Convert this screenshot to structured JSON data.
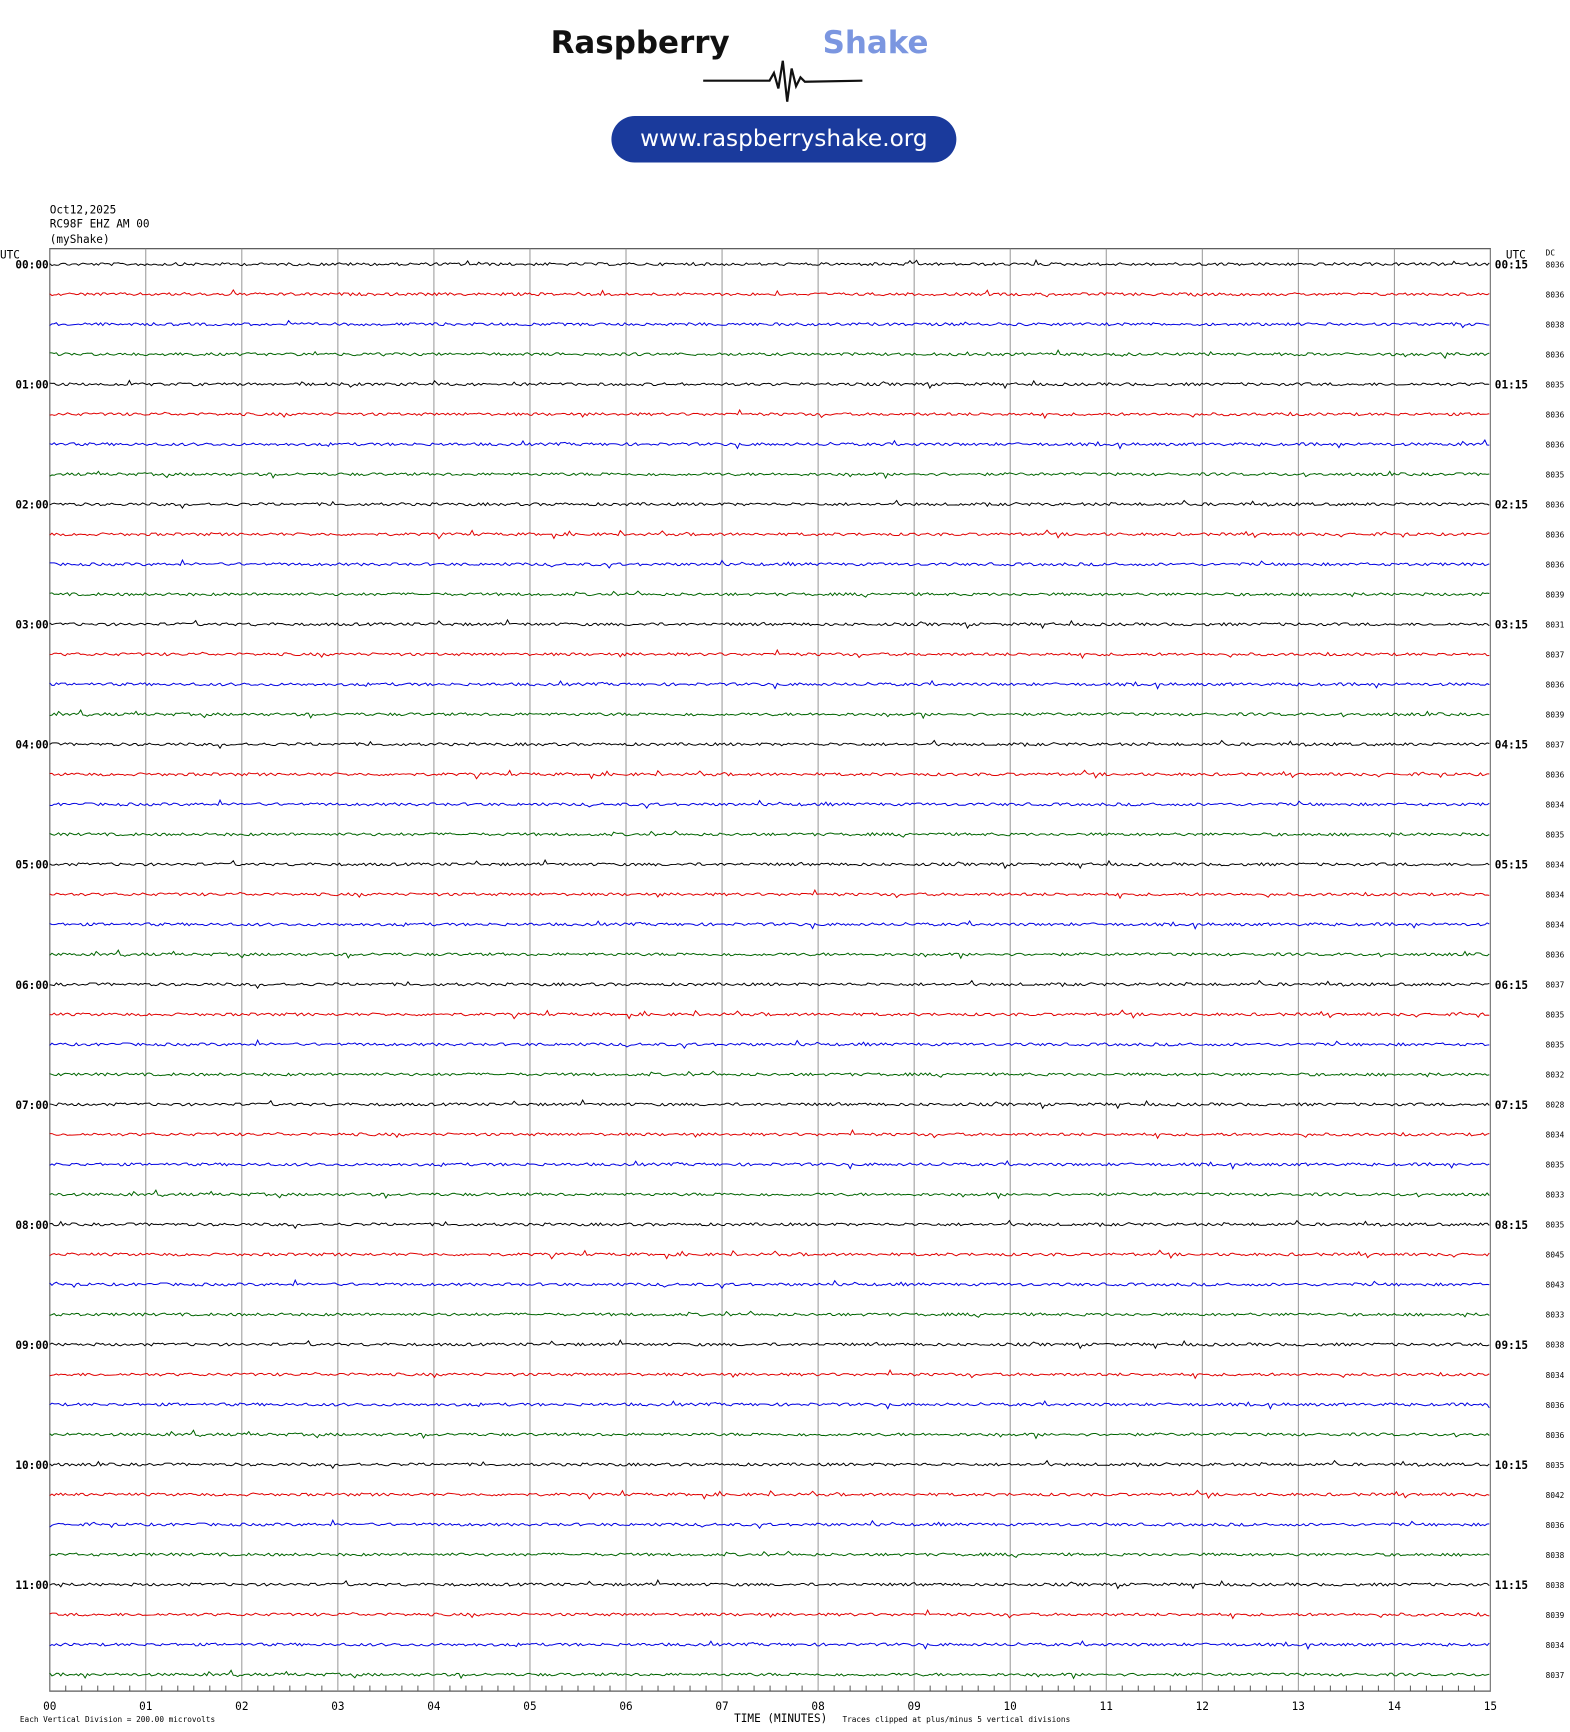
{
  "logo": {
    "name1": "Raspberry",
    "name2": "Shake",
    "url": "www.raspberryshake.org"
  },
  "header": {
    "date": "Oct12,2025",
    "station": "RC98F EHZ AM 00",
    "network": "(myShake)"
  },
  "left_axis": {
    "title": "UTC",
    "labels": [
      "00:00",
      "01:00",
      "02:00",
      "03:00",
      "04:00",
      "05:00",
      "06:00",
      "07:00",
      "08:00",
      "09:00",
      "10:00",
      "11:00"
    ]
  },
  "right_axis": {
    "title": "UTC",
    "labels": [
      "00:15",
      "01:15",
      "02:15",
      "03:15",
      "04:15",
      "05:15",
      "06:15",
      "07:15",
      "08:15",
      "09:15",
      "10:15",
      "11:15"
    ]
  },
  "dc_title": "DC",
  "dc_values": [
    "8036",
    "8036",
    "8038",
    "8036",
    "8035",
    "8036",
    "8036",
    "8035",
    "8036",
    "8036",
    "8036",
    "8039",
    "8031",
    "8037",
    "8036",
    "8039",
    "8037",
    "8036",
    "8034",
    "8035",
    "8034",
    "8034",
    "8034",
    "8036",
    "8037",
    "8035",
    "8035",
    "8032",
    "8028",
    "8034",
    "8035",
    "8033",
    "8035",
    "8045",
    "8043",
    "8033",
    "8038",
    "8034",
    "8036",
    "8036",
    "8035",
    "8042",
    "8036",
    "8038",
    "8038",
    "8039",
    "8034",
    "8037"
  ],
  "x_axis": {
    "title": "TIME (MINUTES)",
    "ticks": [
      "00",
      "01",
      "02",
      "03",
      "04",
      "05",
      "06",
      "07",
      "08",
      "09",
      "10",
      "11",
      "12",
      "13",
      "14",
      "15"
    ]
  },
  "footer": {
    "scale": "Each Vertical Division =  200.00 microvolts",
    "clip": "Traces clipped at plus/minus 5 vertical divisions"
  },
  "trace_colors": [
    "#000000",
    "#e00000",
    "#0000e0",
    "#006400"
  ]
}
